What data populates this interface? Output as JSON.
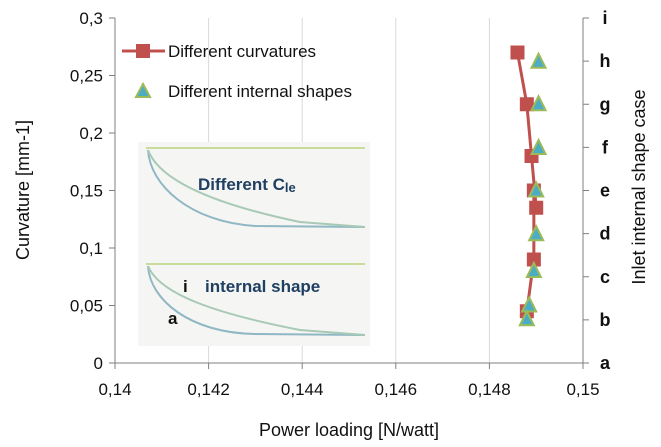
{
  "chart_data": {
    "type": "line",
    "xlabel": "Power loading [N/watt]",
    "ylabel": "Curvature [mm-1]",
    "y2label": "Inlet internal shape case",
    "xlim": [
      0.14,
      0.15
    ],
    "ylim": [
      0,
      0.3
    ],
    "x_ticks": [
      "0,14",
      "0,142",
      "0,144",
      "0,146",
      "0,148",
      "0,15"
    ],
    "y_ticks": [
      "0",
      "0,05",
      "0,1",
      "0,15",
      "0,2",
      "0,25",
      "0,3"
    ],
    "y2_ticks": [
      "a",
      "b",
      "c",
      "d",
      "e",
      "f",
      "g",
      "h",
      "i"
    ],
    "grid": "vertical",
    "legend_position": "top-left",
    "series": [
      {
        "name": "Different curvatures",
        "marker": "square",
        "color": "#c0504d",
        "x": [
          0.1486,
          0.1488,
          0.1489,
          0.149,
          0.14895,
          0.14895,
          0.1488
        ],
        "y": [
          0.27,
          0.225,
          0.18,
          0.135,
          0.15,
          0.09,
          0.045
        ]
      },
      {
        "name": "Different internal shapes",
        "marker": "triangle",
        "color": "#4bacc6",
        "edge_color": "#9bbb59",
        "x": [
          0.14905,
          0.14905,
          0.14905,
          0.149,
          0.149,
          0.14895,
          0.14885,
          0.1488
        ],
        "y": [
          0.262,
          0.225,
          0.187,
          0.15,
          0.112,
          0.08,
          0.05,
          0.038
        ]
      }
    ],
    "inset": {
      "label_top": "Different C",
      "label_top_sub": "le",
      "label_bottom": "internal shape",
      "marker_i": "i",
      "marker_a": "a"
    }
  }
}
